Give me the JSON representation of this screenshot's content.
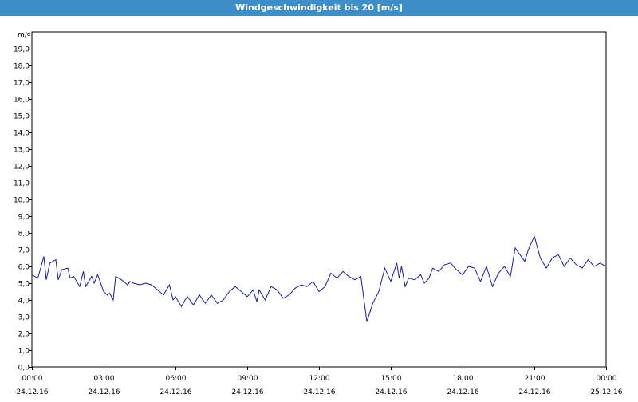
{
  "window": {
    "title": "Windgeschwindigkeit bis 20 [m/s]"
  },
  "chart_data": {
    "type": "line",
    "title": "Windgeschwindigkeit bis 20 [m/s]",
    "ylabel": "m/s",
    "ylim": [
      0,
      20
    ],
    "yticks": [
      "0,0",
      "1,0",
      "2,0",
      "3,0",
      "4,0",
      "5,0",
      "6,0",
      "7,0",
      "8,0",
      "9,0",
      "10,0",
      "11,0",
      "12,0",
      "13,0",
      "14,0",
      "15,0",
      "16,0",
      "17,0",
      "18,0",
      "19,0"
    ],
    "xticks": [
      {
        "time": "00:00",
        "date": "24.12.16"
      },
      {
        "time": "03:00",
        "date": "24.12.16"
      },
      {
        "time": "06:00",
        "date": "24.12.16"
      },
      {
        "time": "09:00",
        "date": "24.12.16"
      },
      {
        "time": "12:00",
        "date": "24.12.16"
      },
      {
        "time": "15:00",
        "date": "24.12.16"
      },
      {
        "time": "18:00",
        "date": "24.12.16"
      },
      {
        "time": "21:00",
        "date": "24.12.16"
      },
      {
        "time": "00:00",
        "date": "25.12.16"
      }
    ],
    "grid": true,
    "series": [
      {
        "color": "#1a1a9e",
        "x": [
          0,
          0.25,
          0.5,
          0.6,
          0.75,
          1,
          1.1,
          1.25,
          1.5,
          1.6,
          1.75,
          2,
          2.15,
          2.25,
          2.5,
          2.6,
          2.75,
          3,
          3.15,
          3.25,
          3.4,
          3.5,
          3.75,
          4,
          4.1,
          4.25,
          4.5,
          4.75,
          5,
          5.25,
          5.5,
          5.75,
          5.9,
          6,
          6.25,
          6.4,
          6.5,
          6.75,
          7,
          7.25,
          7.5,
          7.75,
          8,
          8.25,
          8.5,
          8.75,
          9,
          9.25,
          9.4,
          9.5,
          9.75,
          10,
          10.25,
          10.5,
          10.75,
          11,
          11.25,
          11.5,
          11.75,
          12,
          12.25,
          12.5,
          12.75,
          13,
          13.25,
          13.5,
          13.75,
          14,
          14.25,
          14.5,
          14.75,
          15,
          15.25,
          15.35,
          15.45,
          15.6,
          15.75,
          16,
          16.25,
          16.4,
          16.6,
          16.75,
          17,
          17.25,
          17.5,
          17.75,
          18,
          18.25,
          18.5,
          18.75,
          19,
          19.25,
          19.5,
          19.75,
          20,
          20.2,
          20.4,
          20.6,
          20.75,
          21,
          21.25,
          21.5,
          21.75,
          22,
          22.25,
          22.5,
          22.75,
          23,
          23.25,
          23.5,
          23.75,
          24
        ],
        "y": [
          5.5,
          5.3,
          6.6,
          5.2,
          6.2,
          6.4,
          5.2,
          5.8,
          5.9,
          5.3,
          5.4,
          4.8,
          5.7,
          4.8,
          5.4,
          5.0,
          5.5,
          4.5,
          4.3,
          4.4,
          4.0,
          5.4,
          5.2,
          4.9,
          5.1,
          5.0,
          4.9,
          5.0,
          4.9,
          4.6,
          4.3,
          4.9,
          4.0,
          4.2,
          3.6,
          4.0,
          4.2,
          3.7,
          4.3,
          3.8,
          4.3,
          3.8,
          4.0,
          4.5,
          4.8,
          4.5,
          4.2,
          4.6,
          3.9,
          4.6,
          4.0,
          4.8,
          4.6,
          4.1,
          4.3,
          4.7,
          4.9,
          4.8,
          5.1,
          4.5,
          4.8,
          5.6,
          5.3,
          5.7,
          5.4,
          5.2,
          5.4,
          2.7,
          3.8,
          4.5,
          5.9,
          5.1,
          6.2,
          5.3,
          6.0,
          4.8,
          5.3,
          5.2,
          5.5,
          5.0,
          5.3,
          5.9,
          5.7,
          6.1,
          6.2,
          5.8,
          5.5,
          6.0,
          5.9,
          5.1,
          6.0,
          4.8,
          5.6,
          6.0,
          5.4,
          7.1,
          6.7,
          6.3,
          7.0,
          7.8,
          6.5,
          5.9,
          6.5,
          6.7,
          6.0,
          6.5,
          6.1,
          5.9,
          6.4,
          6.0,
          6.2,
          6.0
        ]
      }
    ]
  }
}
